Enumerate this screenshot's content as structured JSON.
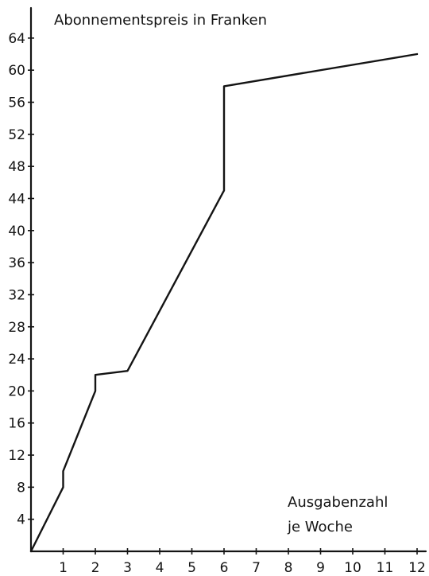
{
  "chart_data": {
    "type": "line",
    "title": "",
    "ylabel": "Abonnementspreis in Franken",
    "xlabel_lines": [
      "Ausgabenzahl",
      "je Woche"
    ],
    "x_ticks": [
      1,
      2,
      3,
      4,
      5,
      6,
      7,
      8,
      9,
      10,
      11,
      12
    ],
    "y_ticks": [
      4,
      8,
      12,
      16,
      20,
      24,
      28,
      32,
      36,
      40,
      44,
      48,
      52,
      56,
      60,
      64
    ],
    "xlim": [
      0,
      12.4
    ],
    "ylim": [
      0,
      66
    ],
    "grid": false,
    "legend": "none",
    "series": [
      {
        "points": [
          [
            0,
            0
          ],
          [
            1,
            8
          ],
          [
            1,
            10
          ],
          [
            2,
            20
          ],
          [
            2,
            22
          ],
          [
            3,
            22.5
          ],
          [
            6,
            45
          ],
          [
            6,
            58
          ],
          [
            12,
            62
          ]
        ]
      }
    ]
  }
}
